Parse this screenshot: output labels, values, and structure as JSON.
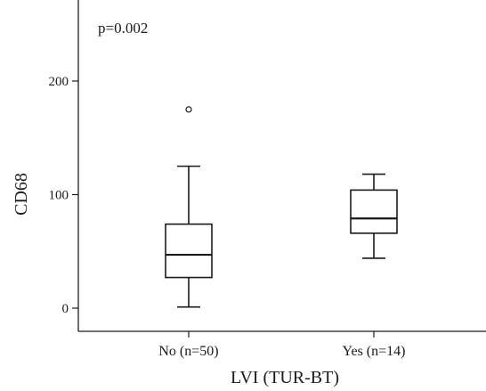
{
  "chart_data": {
    "type": "boxplot",
    "title": "",
    "annotation": "p=0.002",
    "xlabel": "LVI (TUR-BT)",
    "ylabel": "CD68",
    "ylim": [
      -10,
      265
    ],
    "yticks": [
      0,
      100,
      200
    ],
    "grid": false,
    "categories": [
      "No (n=50)",
      "Yes (n=14)"
    ],
    "boxes": [
      {
        "category": "No (n=50)",
        "whisker_low": 1,
        "q1": 27,
        "median": 47,
        "q3": 74,
        "whisker_high": 125,
        "outliers": [
          175
        ]
      },
      {
        "category": "Yes (n=14)",
        "whisker_low": 44,
        "q1": 66,
        "median": 79,
        "q3": 104,
        "whisker_high": 118,
        "outliers": []
      }
    ]
  }
}
